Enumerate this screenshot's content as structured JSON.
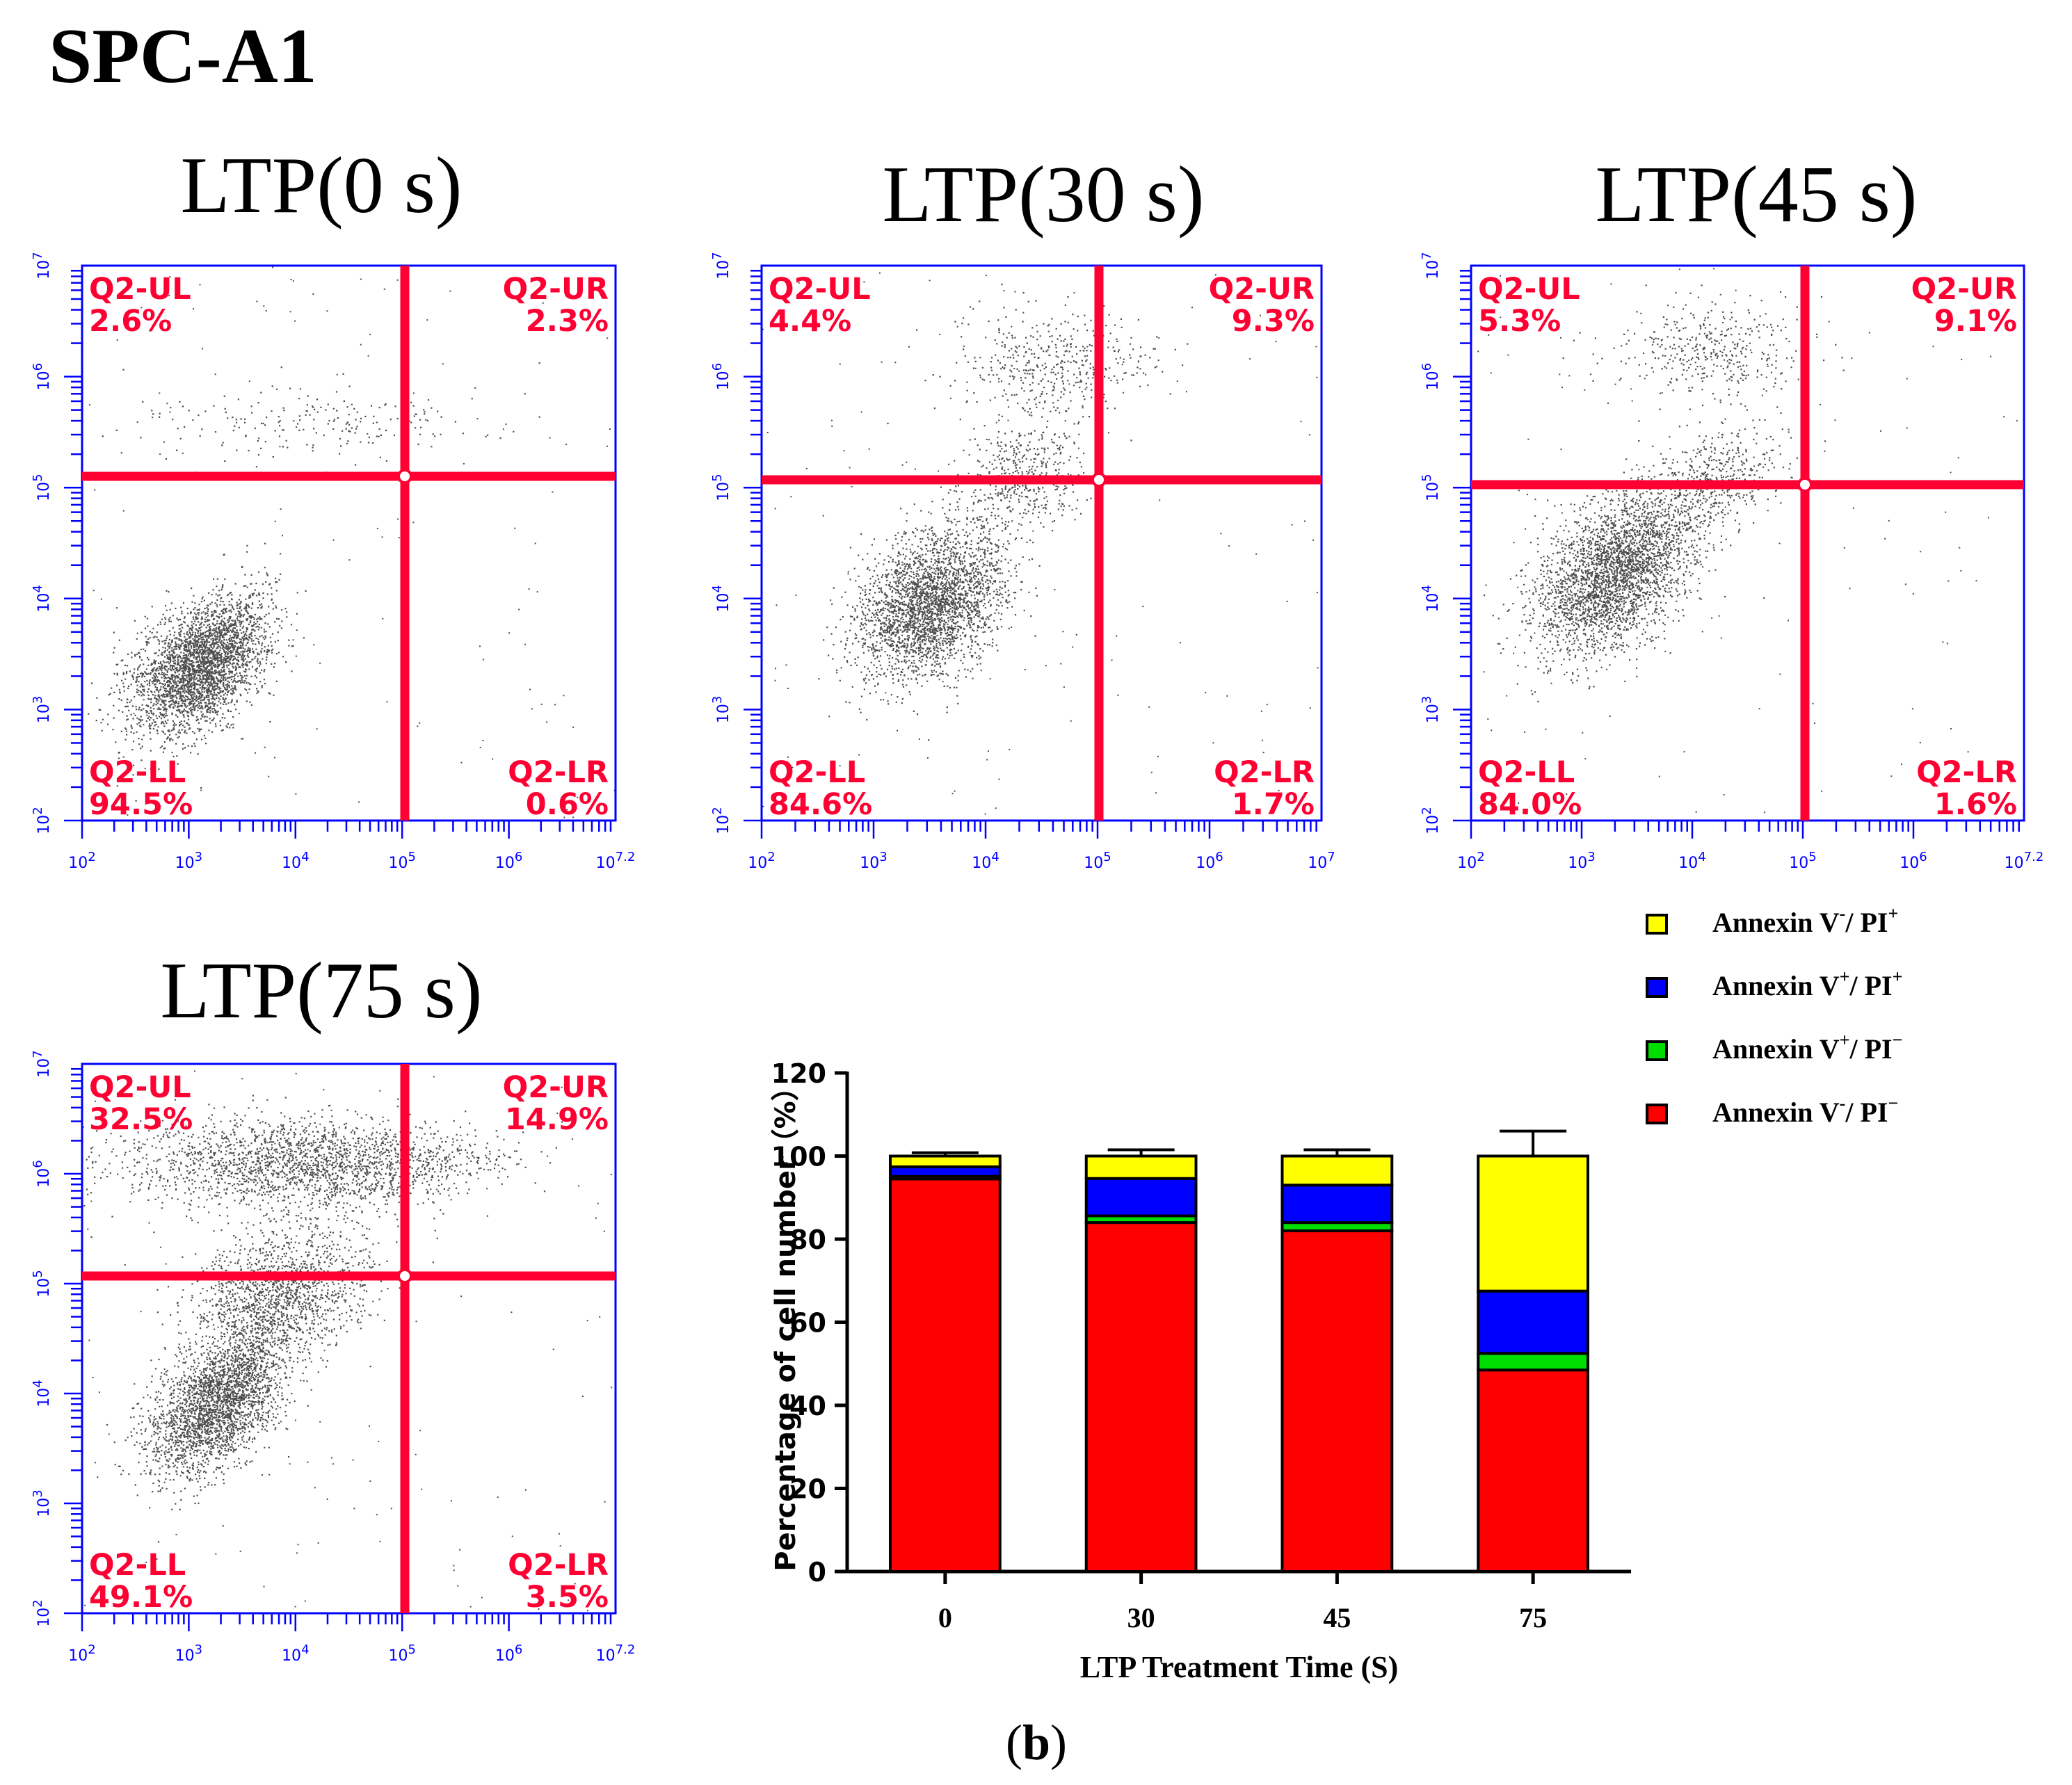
{
  "figure": {
    "title": "SPC-A1",
    "caption_letter": "b",
    "caption_open": "(",
    "caption_close": ")"
  },
  "flow_panels": [
    {
      "id": "p0",
      "title": "LTP(0 s)",
      "x_ticks": [
        "10^2",
        "10^3",
        "10^4",
        "10^5",
        "10^6",
        "10^7.2"
      ],
      "y_ticks": [
        "10^2",
        "10^3",
        "10^4",
        "10^5",
        "10^6",
        "10^7"
      ],
      "quadrants": {
        "UL": {
          "label": "Q2-UL",
          "value": "2.6%"
        },
        "UR": {
          "label": "Q2-UR",
          "value": "2.3%"
        },
        "LL": {
          "label": "Q2-LL",
          "value": "94.5%"
        },
        "LR": {
          "label": "Q2-LR",
          "value": "0.6%"
        }
      }
    },
    {
      "id": "p30",
      "title": "LTP(30 s)",
      "x_ticks": [
        "10^2",
        "10^3",
        "10^4",
        "10^5",
        "10^6",
        "10^7"
      ],
      "y_ticks": [
        "10^2",
        "10^3",
        "10^4",
        "10^5",
        "10^6",
        "10^7"
      ],
      "quadrants": {
        "UL": {
          "label": "Q2-UL",
          "value": "4.4%"
        },
        "UR": {
          "label": "Q2-UR",
          "value": "9.3%"
        },
        "LL": {
          "label": "Q2-LL",
          "value": "84.6%"
        },
        "LR": {
          "label": "Q2-LR",
          "value": "1.7%"
        }
      }
    },
    {
      "id": "p45",
      "title": "LTP(45 s)",
      "x_ticks": [
        "10^2",
        "10^3",
        "10^4",
        "10^5",
        "10^6",
        "10^7.2"
      ],
      "y_ticks": [
        "10^2",
        "10^3",
        "10^4",
        "10^5",
        "10^6",
        "10^7"
      ],
      "quadrants": {
        "UL": {
          "label": "Q2-UL",
          "value": "5.3%"
        },
        "UR": {
          "label": "Q2-UR",
          "value": "9.1%"
        },
        "LL": {
          "label": "Q2-LL",
          "value": "84.0%"
        },
        "LR": {
          "label": "Q2-LR",
          "value": "1.6%"
        }
      }
    },
    {
      "id": "p75",
      "title": "LTP(75 s)",
      "x_ticks": [
        "10^2",
        "10^3",
        "10^4",
        "10^5",
        "10^6",
        "10^7.2"
      ],
      "y_ticks": [
        "10^2",
        "10^3",
        "10^4",
        "10^5",
        "10^6",
        "10^7"
      ],
      "quadrants": {
        "UL": {
          "label": "Q2-UL",
          "value": "32.5%"
        },
        "UR": {
          "label": "Q2-UR",
          "value": "14.9%"
        },
        "LL": {
          "label": "Q2-LL",
          "value": "49.1%"
        },
        "LR": {
          "label": "Q2-LR",
          "value": "3.5%"
        }
      }
    }
  ],
  "legend": [
    {
      "key": "annexin_neg_pi_pos",
      "text": "Annexin V",
      "sup1": "-",
      "mid": "/ PI",
      "sup2": "+",
      "color": "#ffff00"
    },
    {
      "key": "annexin_pos_pi_pos",
      "text": "Annexin V",
      "sup1": "+",
      "mid": "/ PI",
      "sup2": "+",
      "color": "#0000ff"
    },
    {
      "key": "annexin_pos_pi_neg",
      "text": "Annexin V",
      "sup1": "+",
      "mid": "/ PI",
      "sup2": "−",
      "color": "#00dd00"
    },
    {
      "key": "annexin_neg_pi_neg",
      "text": "Annexin V",
      "sup1": "-",
      "mid": "/ PI",
      "sup2": "−",
      "color": "#ff0000"
    }
  ],
  "colors": {
    "flow_axis": "#0000ff",
    "gate": "#ff0033",
    "gate_text": "#ff0033",
    "dots": "#111111"
  },
  "chart_data": {
    "type": "bar",
    "stacked": true,
    "categories": [
      "0",
      "30",
      "45",
      "75"
    ],
    "xlabel": "LTP Treatment Time (S)",
    "ylabel": "Percentage of cell number（%）",
    "ylim": [
      0,
      120
    ],
    "yticks": [
      "0",
      "20",
      "40",
      "60",
      "80",
      "100",
      "120"
    ],
    "series": [
      {
        "name": "Annexin V-/PI-",
        "color": "#ff0000",
        "values": [
          94.5,
          84.0,
          82.0,
          48.5
        ],
        "error": [
          0,
          0,
          0,
          0
        ]
      },
      {
        "name": "Annexin V+/PI-",
        "color": "#00dd00",
        "values": [
          0.6,
          1.6,
          2.0,
          4.0
        ],
        "error": [
          0,
          0,
          0,
          1.5
        ]
      },
      {
        "name": "Annexin V+/PI+",
        "color": "#0000ff",
        "values": [
          2.3,
          9.0,
          9.0,
          15.0
        ],
        "error": [
          0,
          0.8,
          0.7,
          1.7
        ]
      },
      {
        "name": "Annexin V-/PI+",
        "color": "#ffff00",
        "values": [
          2.6,
          5.4,
          7.0,
          32.5
        ],
        "error": [
          0.8,
          1.5,
          1.5,
          6.0
        ]
      }
    ]
  }
}
